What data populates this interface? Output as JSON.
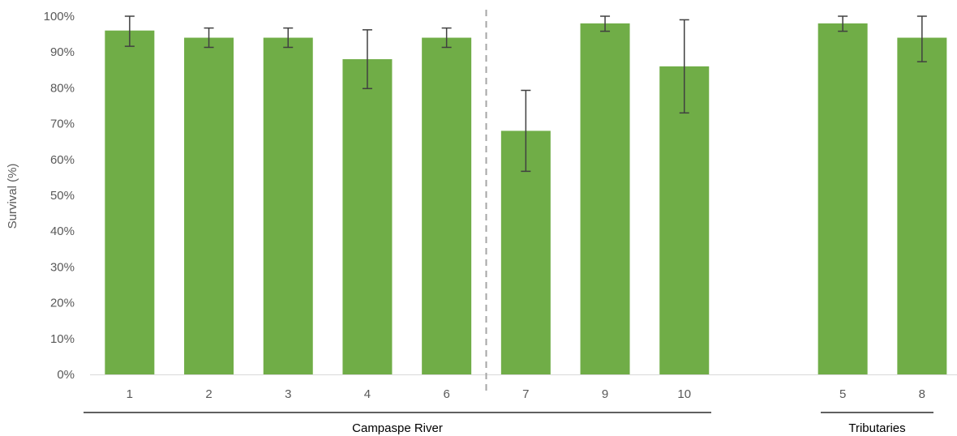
{
  "chart_data": {
    "type": "bar",
    "ylabel": "Survival (%)",
    "ylim": [
      0,
      100
    ],
    "y_ticks": [
      "0%",
      "10%",
      "20%",
      "30%",
      "40%",
      "50%",
      "60%",
      "70%",
      "80%",
      "90%",
      "100%"
    ],
    "grid": false,
    "legend": "none",
    "bar_color": "#70AD47",
    "error_bar_color": "#404040",
    "categories": [
      "1",
      "2",
      "3",
      "4",
      "6",
      "7",
      "9",
      "10",
      "5",
      "8"
    ],
    "values": [
      96,
      94,
      94,
      88,
      94,
      68,
      98,
      86,
      98,
      94
    ],
    "error_low": [
      91.6,
      91.3,
      91.3,
      79.8,
      91.3,
      56.7,
      95.8,
      73.0,
      95.8,
      87.3
    ],
    "error_high": [
      100,
      96.7,
      96.7,
      96.2,
      96.7,
      79.3,
      100,
      99.0,
      100,
      100
    ],
    "groups": [
      {
        "label": "Campaspe River",
        "categories": [
          "1",
          "2",
          "3",
          "4",
          "6",
          "7",
          "9",
          "10"
        ]
      },
      {
        "label": "Tributaries",
        "categories": [
          "5",
          "8"
        ]
      }
    ],
    "divider_after": "6"
  }
}
